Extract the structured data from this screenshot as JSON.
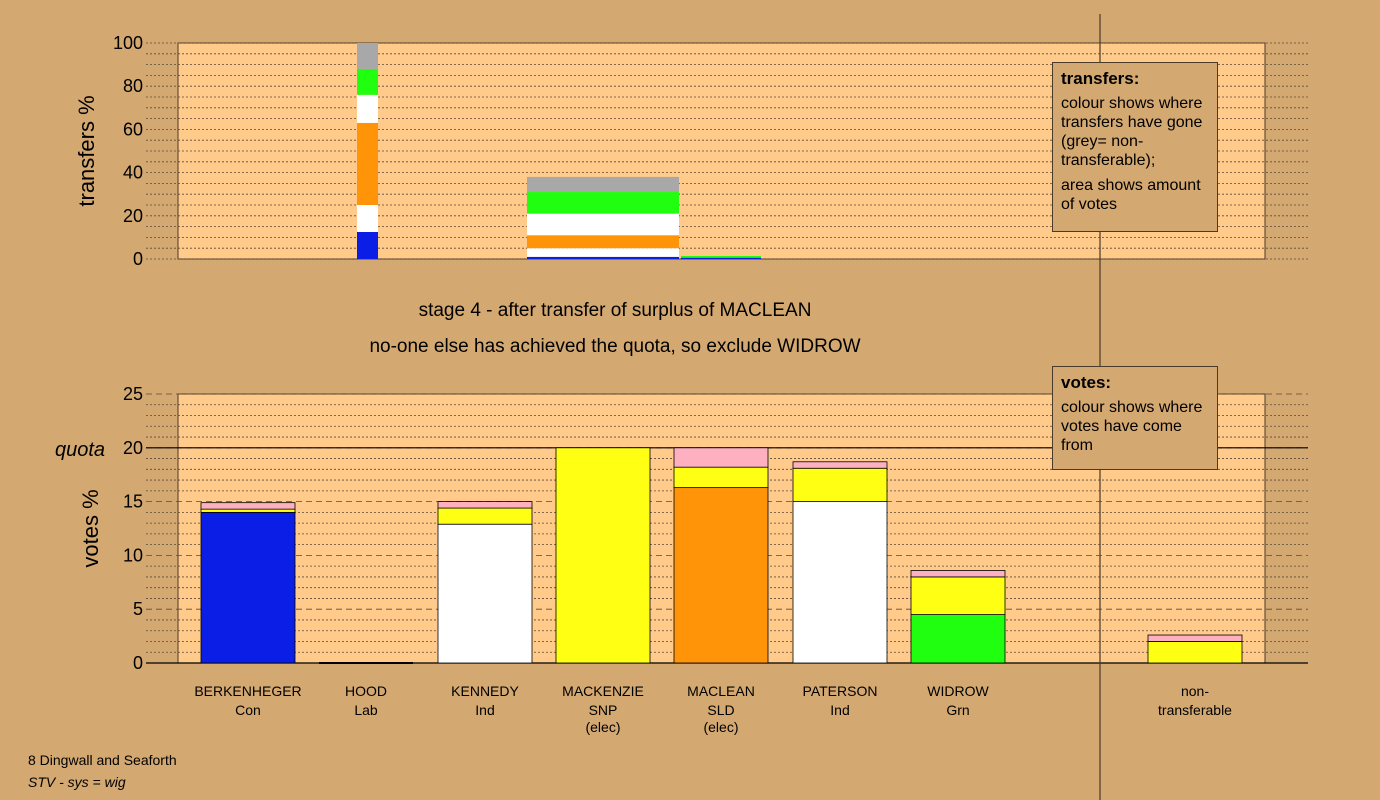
{
  "chart_data": [
    {
      "type": "bar",
      "stacked": true,
      "ylabel": "transfers %",
      "ylim": [
        0,
        100
      ],
      "yticks": [
        0,
        20,
        40,
        60,
        80,
        100
      ],
      "grid": "dotted",
      "bars": [
        {
          "segments": [
            {
              "color": "#0a1ee6",
              "value": 12.5
            },
            {
              "color": "#ffffff",
              "value": 12.5
            },
            {
              "color": "#ff9408",
              "value": 38
            },
            {
              "color": "#ffffff",
              "value": 13
            },
            {
              "color": "#20ff10",
              "value": 12
            },
            {
              "color": "#a8a8a8",
              "value": 12
            }
          ]
        },
        {
          "segments": [
            {
              "color": "#0a1ee6",
              "value": 1
            },
            {
              "color": "#ffffff",
              "value": 4
            },
            {
              "color": "#ff9408",
              "value": 6
            },
            {
              "color": "#ffffff",
              "value": 10
            },
            {
              "color": "#20ff10",
              "value": 10
            },
            {
              "color": "#a8a8a8",
              "value": 7
            }
          ]
        },
        {
          "segments": [
            {
              "color": "#0a1ee6",
              "value": 0.6
            },
            {
              "color": "#20ff10",
              "value": 0.8
            }
          ]
        }
      ]
    },
    {
      "type": "bar",
      "stacked": true,
      "ylabel": "votes %",
      "ylim": [
        0,
        25
      ],
      "yticks": [
        0,
        5,
        10,
        15,
        20,
        25
      ],
      "quota": 20,
      "quota_label": "quota",
      "grid": "dotted",
      "candidates": [
        {
          "name": "BERKENHEGER",
          "party": "Con",
          "status": "",
          "segments": [
            {
              "color": "#0a1ee6",
              "value": 14.0
            },
            {
              "color": "#ffff14",
              "value": 0.3
            },
            {
              "color": "#ffb0c0",
              "value": 0.6
            }
          ]
        },
        {
          "name": "HOOD",
          "party": "Lab",
          "status": "",
          "segments": []
        },
        {
          "name": "KENNEDY",
          "party": "Ind",
          "status": "",
          "segments": [
            {
              "color": "#ffffff",
              "value": 12.9
            },
            {
              "color": "#ffff14",
              "value": 1.5
            },
            {
              "color": "#ffb0c0",
              "value": 0.6
            }
          ]
        },
        {
          "name": "MACKENZIE",
          "party": "SNP",
          "status": "(elec)",
          "segments": [
            {
              "color": "#ffff14",
              "value": 20.0
            }
          ]
        },
        {
          "name": "MACLEAN",
          "party": "SLD",
          "status": "(elec)",
          "segments": [
            {
              "color": "#ff9408",
              "value": 16.3
            },
            {
              "color": "#ffff14",
              "value": 1.9
            },
            {
              "color": "#ffb0c0",
              "value": 1.8
            }
          ]
        },
        {
          "name": "PATERSON",
          "party": "Ind",
          "status": "",
          "segments": [
            {
              "color": "#ffffff",
              "value": 15.0
            },
            {
              "color": "#ffff14",
              "value": 3.1
            },
            {
              "color": "#ffb0c0",
              "value": 0.6
            }
          ]
        },
        {
          "name": "WIDROW",
          "party": "Grn",
          "status": "",
          "segments": [
            {
              "color": "#20ff10",
              "value": 4.5
            },
            {
              "color": "#ffff14",
              "value": 3.5
            },
            {
              "color": "#ffb0c0",
              "value": 0.6
            }
          ]
        },
        {
          "name": "non-",
          "party": "transferable",
          "status": "",
          "segments": [
            {
              "color": "#ffff14",
              "value": 2.0
            },
            {
              "color": "#ffb0c0",
              "value": 0.6
            }
          ]
        }
      ]
    }
  ],
  "stage_line1": "stage 4 - after transfer of surplus of MACLEAN",
  "stage_line2": "no-one else has achieved the quota, so exclude WIDROW",
  "legend_transfers": {
    "heading": "transfers:",
    "para1": "colour shows where transfers have gone (grey= non-transferable);",
    "para2": "area shows amount of votes"
  },
  "legend_votes": {
    "heading": "votes:",
    "para1": "colour shows where votes have come from"
  },
  "footer_line1": "8 Dingwall and Seaforth",
  "footer_line2": "STV - sys = wig",
  "colors": {
    "background": "#d4a871",
    "plot_area": "#ffca8a",
    "non_transferable": "#a8a8a8"
  }
}
